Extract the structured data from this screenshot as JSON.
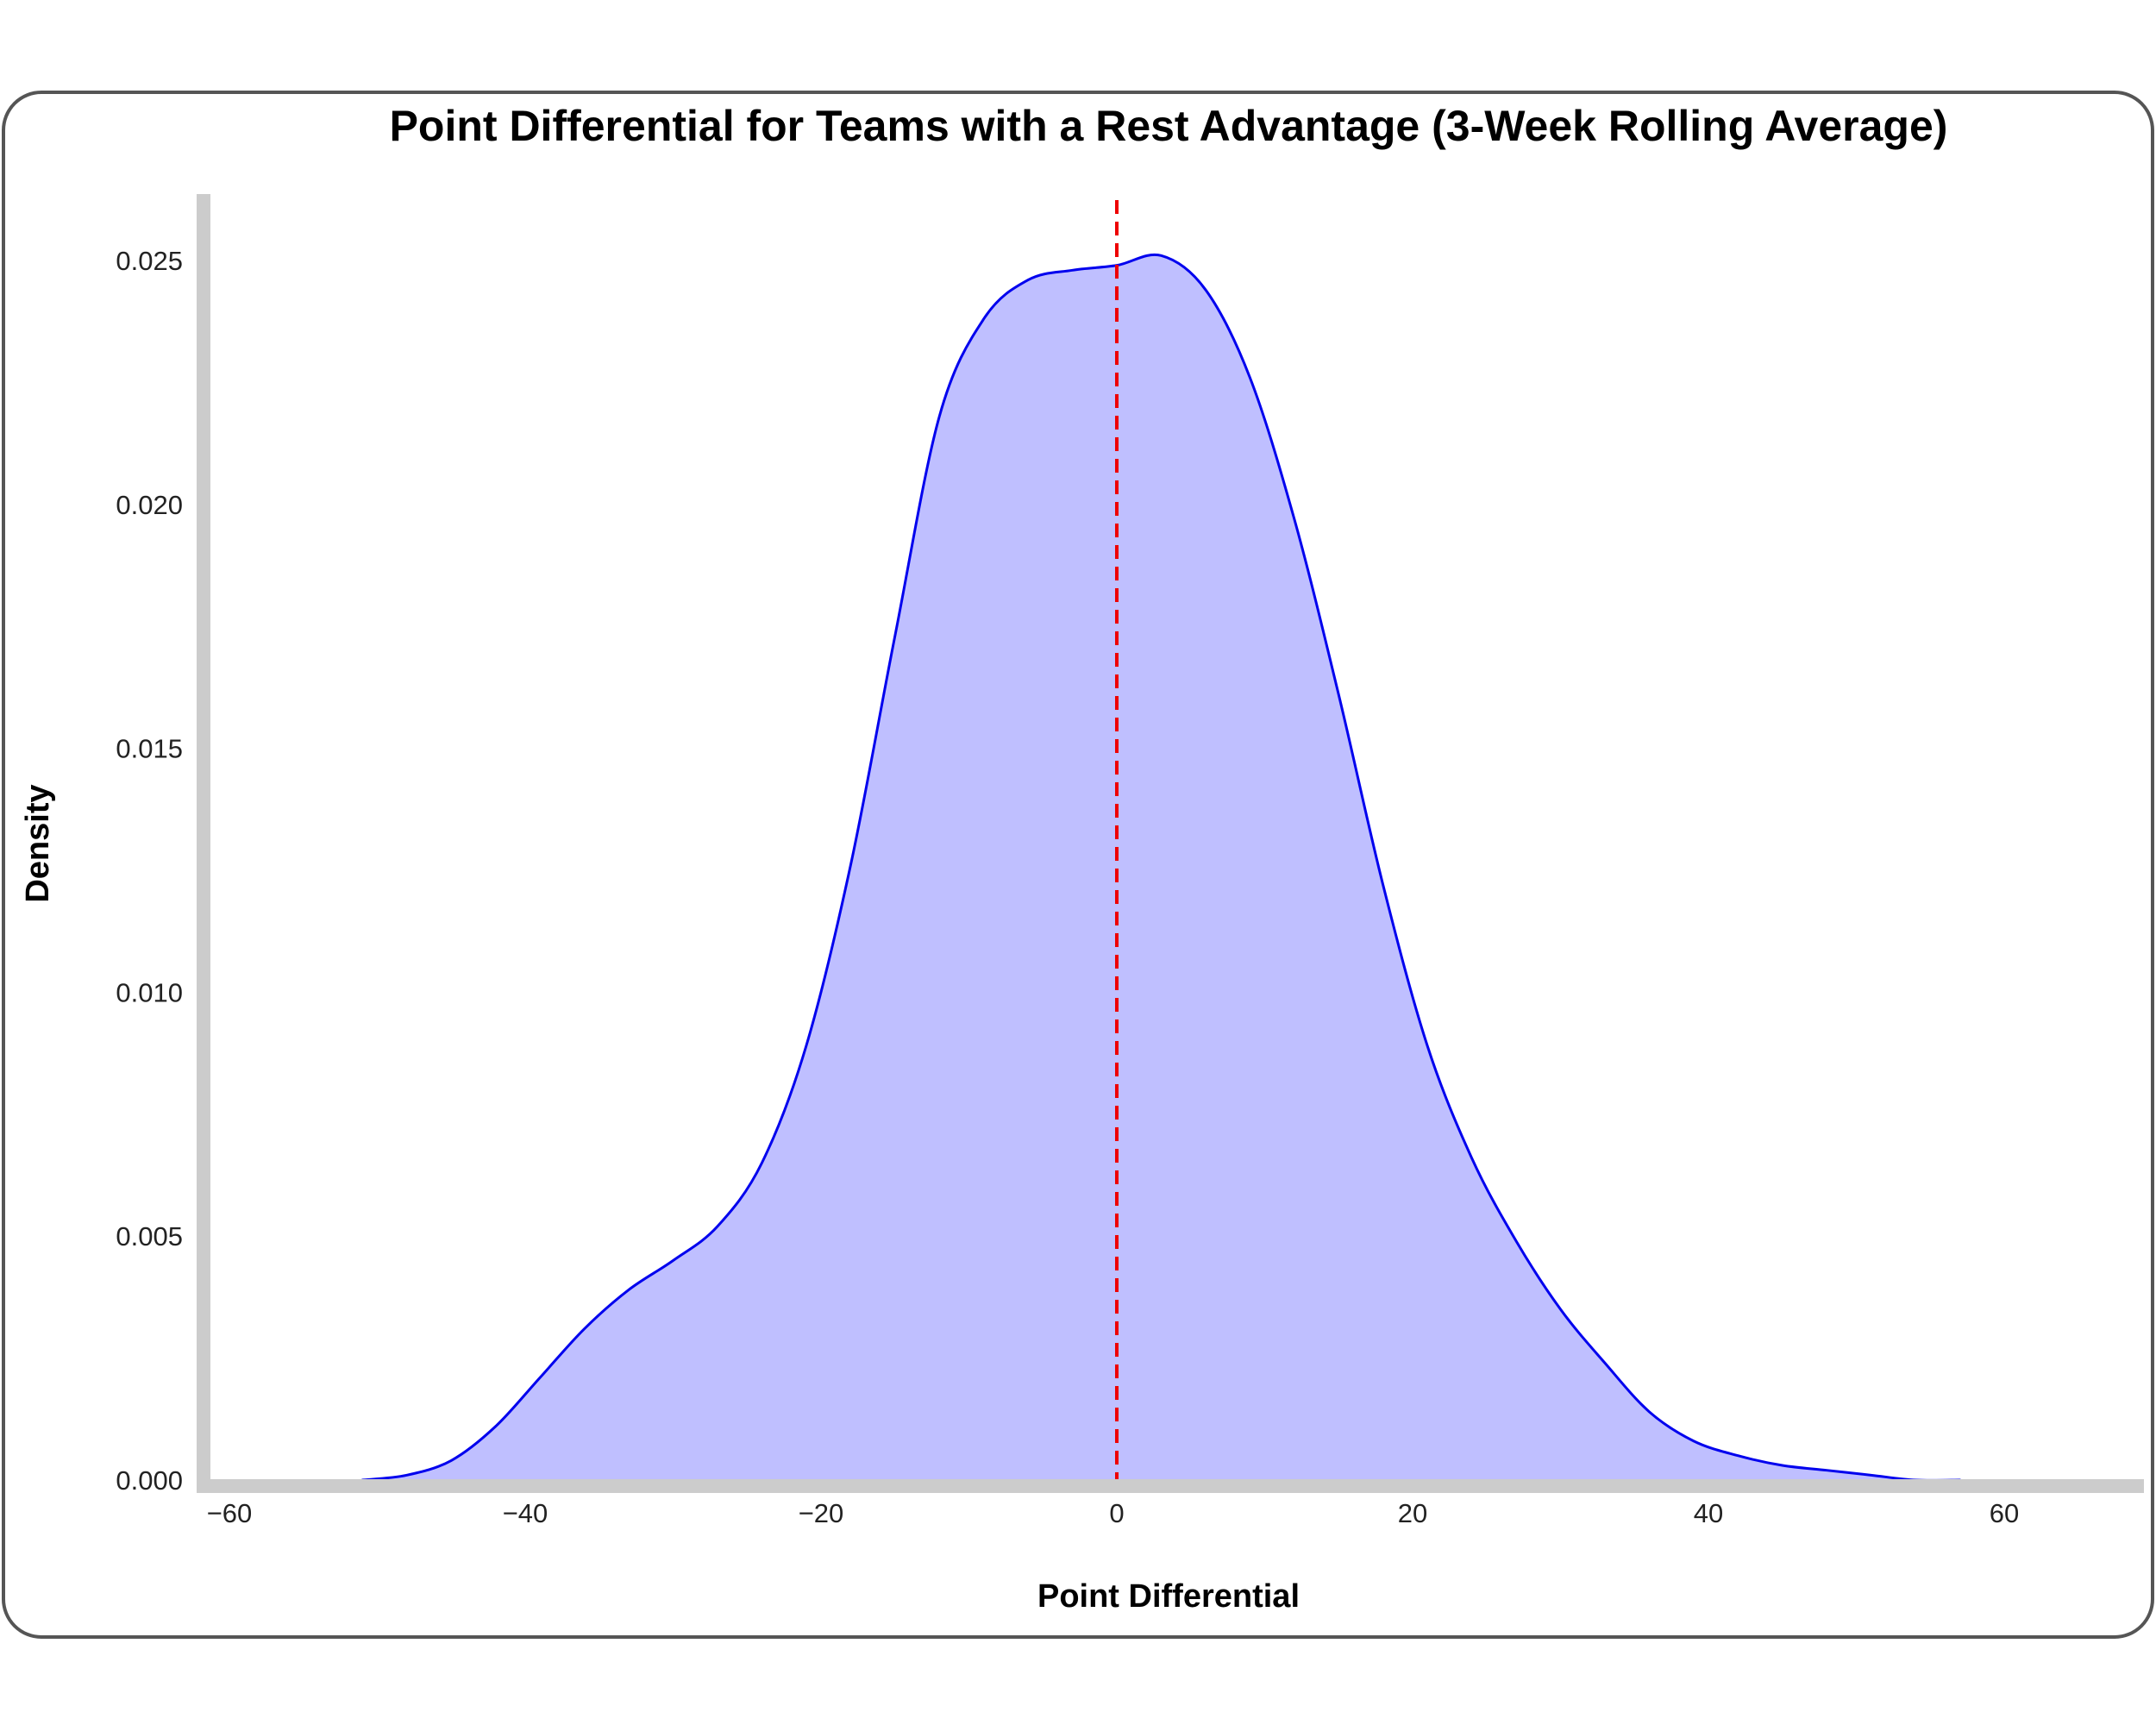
{
  "chart_data": {
    "type": "area",
    "title": "Point Differential for Teams with a Rest Advantage (3-Week Rolling Average)",
    "xlabel": "Point Differential",
    "ylabel": "Density",
    "xlim": [
      -62,
      70
    ],
    "ylim": [
      0,
      0.0265
    ],
    "x_ticks": [
      -60,
      -40,
      -20,
      0,
      20,
      40,
      60
    ],
    "x_tick_labels": [
      "−60",
      "−40",
      "−20",
      "0",
      "20",
      "40",
      "60"
    ],
    "y_ticks": [
      0,
      0.005,
      0.01,
      0.015,
      0.02,
      0.025
    ],
    "y_tick_labels": [
      "0.000",
      "0.005",
      "0.010",
      "0.015",
      "0.020",
      "0.025"
    ],
    "grid": false,
    "series": [
      {
        "x": [
          -51,
          -48,
          -45,
          -42,
          -39,
          -36,
          -33,
          -30,
          -27,
          -24,
          -21,
          -18,
          -15,
          -12,
          -9,
          -6,
          -3,
          0,
          3,
          6,
          9,
          12,
          15,
          18,
          21,
          24,
          27,
          30,
          33,
          36,
          39,
          42,
          45,
          48,
          51,
          54,
          57
        ],
        "y": [
          0.0,
          0.0001,
          0.0004,
          0.0011,
          0.0021,
          0.0031,
          0.0039,
          0.0045,
          0.0052,
          0.0065,
          0.0089,
          0.0126,
          0.0173,
          0.0218,
          0.0238,
          0.0246,
          0.0248,
          0.0249,
          0.0251,
          0.0244,
          0.0226,
          0.0197,
          0.0161,
          0.0122,
          0.0089,
          0.0066,
          0.0049,
          0.0035,
          0.0024,
          0.0014,
          0.0008,
          0.0005,
          0.0003,
          0.0002,
          0.0001,
          0.0,
          0.0
        ],
        "line_color": "#0000ee",
        "fill_color": "#bfbfff"
      }
    ],
    "reference_line": {
      "x": 0,
      "color": "#ee0000",
      "style": "dashed"
    },
    "axis_color": "#cccccc",
    "frame_color": "#555555"
  }
}
